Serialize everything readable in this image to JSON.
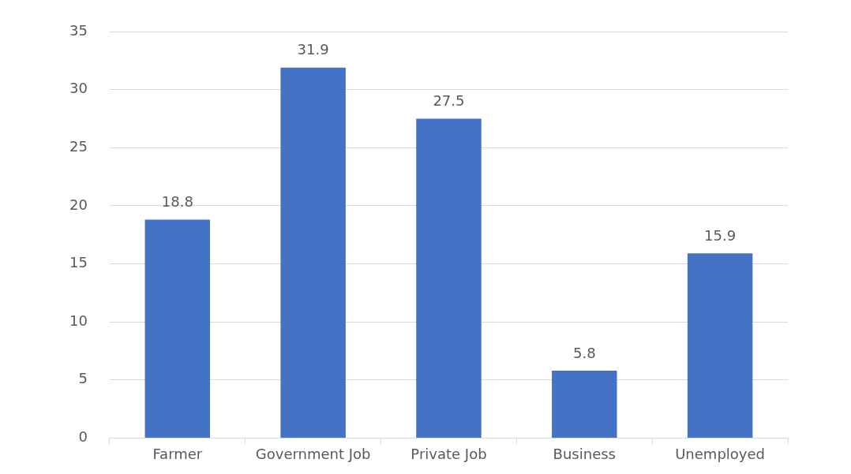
{
  "chart_data": {
    "type": "bar",
    "categories": [
      "Farmer",
      "Government Job",
      "Private Job",
      "Business",
      "Unemployed"
    ],
    "values": [
      18.8,
      31.9,
      27.5,
      5.8,
      15.9
    ],
    "color": "#4472c4",
    "ylim": [
      0,
      35
    ],
    "yticks": [
      0,
      5,
      10,
      15,
      20,
      25,
      30,
      35
    ],
    "grid": "y",
    "data_labels": true,
    "legend": false
  }
}
